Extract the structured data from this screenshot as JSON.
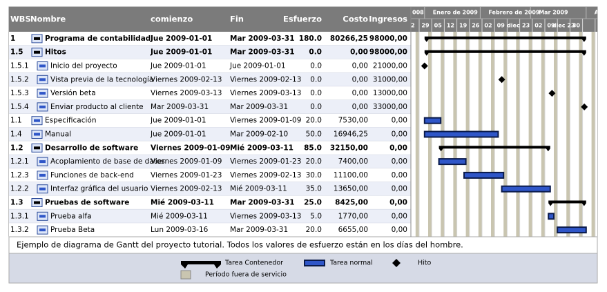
{
  "header": {
    "columns": [
      "WBS",
      "Nombre",
      "comienzo",
      "Fin",
      "Esfuerzo",
      "Costo",
      "Ingresos"
    ]
  },
  "timeline": {
    "months": [
      "008",
      "Enero de 2009",
      "Febrero de 2009",
      "Mar 2009",
      "A"
    ],
    "weeks": [
      "2",
      "29",
      "05",
      "12",
      "19",
      "26",
      "02",
      "09",
      "diec",
      "23",
      "02",
      "09",
      "diec 23",
      "30"
    ]
  },
  "rows": [
    [
      "1",
      "Programa de contabilidad",
      "Jue 2009-01-01",
      "Mar 2009-03-31",
      "180.0",
      "80266,25",
      "98000,00"
    ],
    [
      "1.5",
      "Hitos",
      "Jue 2009-01-01",
      "Mar 2009-03-31",
      "0.0",
      "0,00",
      "98000,00"
    ],
    [
      "1.5.1",
      "Inicio del proyecto",
      "Jue 2009-01-01",
      "Jue 2009-01-01",
      "0.0",
      "0,00",
      "21000,00"
    ],
    [
      "1.5.2",
      "Vista previa de la tecnología",
      "Viernes 2009-02-13",
      "Viernes 2009-02-13",
      "0.0",
      "0,00",
      "31000,00"
    ],
    [
      "1.5.3",
      "Versión beta",
      "Viernes 2009-03-13",
      "Viernes 2009-03-13",
      "0.0",
      "0,00",
      "13000,00"
    ],
    [
      "1.5.4",
      "Enviar producto al cliente",
      "Mar 2009-03-31",
      "Mar 2009-03-31",
      "0.0",
      "0,00",
      "33000,00"
    ],
    [
      "1.1",
      "Especificación",
      "Jue 2009-01-01",
      "Viernes 2009-01-09",
      "20.0",
      "7530,00",
      "0,00"
    ],
    [
      "1.4",
      "Manual",
      "Jue 2009-01-01",
      "Mar 2009-02-10",
      "50.0",
      "16946,25",
      "0,00"
    ],
    [
      "1.2",
      "Desarrollo de software",
      "Viernes 2009-01-09",
      "Mié 2009-03-11",
      "85.0",
      "32150,00",
      "0,00"
    ],
    [
      "1.2.1",
      "Acoplamiento de base de datos",
      "Viernes 2009-01-09",
      "Viernes 2009-01-23",
      "20.0",
      "7400,00",
      "0,00"
    ],
    [
      "1.2.3",
      "Funciones de back-end",
      "Viernes 2009-01-23",
      "Viernes 2009-02-13",
      "30.0",
      "11100,00",
      "0,00"
    ],
    [
      "1.2.2",
      "Interfaz gráfica del usuario",
      "Viernes 2009-02-13",
      "Mié 2009-03-11",
      "35.0",
      "13650,00",
      "0,00"
    ],
    [
      "1.3",
      "Pruebas de software",
      "Mié 2009-03-11",
      "Mar 2009-03-31",
      "25.0",
      "8425,00",
      "0,00"
    ],
    [
      "1.3.1",
      "Prueba alfa",
      "Mié 2009-03-11",
      "Viernes 2009-03-13",
      "5.0",
      "1770,00",
      "0,00"
    ],
    [
      "1.3.2",
      "Prueba Beta",
      "Lun 2009-03-16",
      "Mar 2009-03-31",
      "20.0",
      "6655,00",
      "0,00"
    ]
  ],
  "caption": "Ejemplo de diagrama de Gantt del proyecto tutorial. Todos los valores de esfuerzo están en los días del hombre.",
  "legend": {
    "container": "Tarea Contenedor",
    "task": "Tarea normal",
    "milestone": "Hito",
    "offtime": "Período fuera de servicio"
  }
}
